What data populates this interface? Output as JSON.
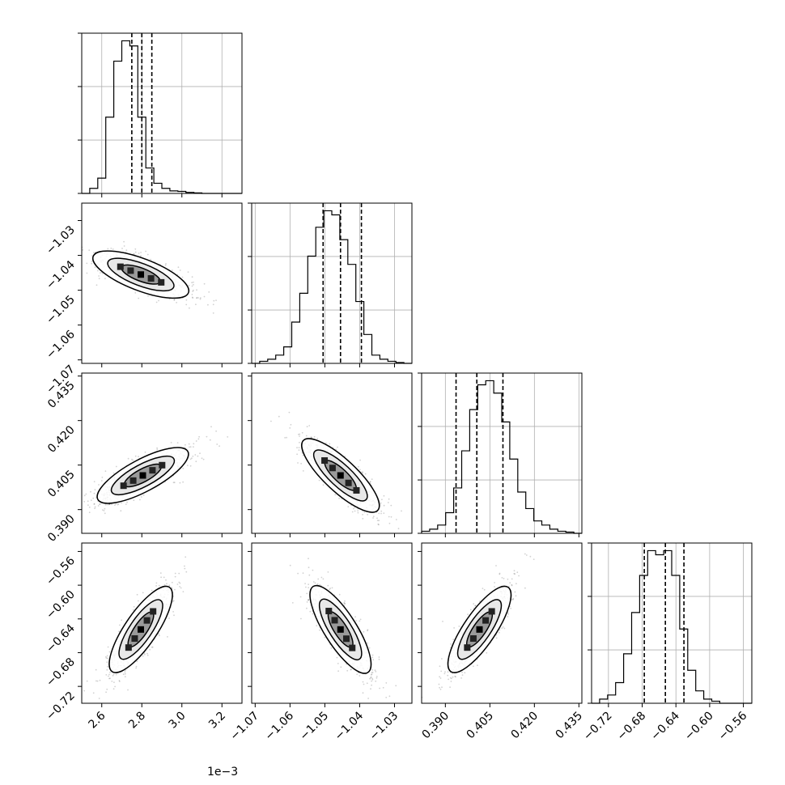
{
  "chart_data": {
    "type": "corner",
    "title": "",
    "grid": true,
    "quantile_lines": "dashed",
    "parameters": [
      {
        "range": [
          2.5,
          3.3
        ],
        "ticks": [
          2.6,
          2.8,
          3.0,
          3.2
        ],
        "tick_labels": [
          "2.6",
          "2.8",
          "3.0",
          "3.2"
        ],
        "offset_label": "1e−3",
        "quantiles": [
          2.75,
          2.8,
          2.85
        ],
        "hist_range": [
          2.5,
          3.3
        ],
        "hist": [
          0,
          1,
          3,
          15,
          26,
          30,
          29,
          15,
          5,
          2,
          1,
          0.5,
          0.4,
          0.2,
          0.1,
          0,
          0,
          0,
          0,
          0
        ]
      },
      {
        "range": [
          -1.071,
          -1.025
        ],
        "ticks": [
          -1.07,
          -1.06,
          -1.05,
          -1.04,
          -1.03
        ],
        "tick_labels": [
          "−1.07",
          "−1.06",
          "−1.05",
          "−1.04",
          "−1.03"
        ],
        "quantiles": [
          -1.0505,
          -1.0455,
          -1.0395
        ],
        "hist_range": [
          -1.071,
          -1.025
        ],
        "hist": [
          0,
          0.5,
          1,
          2,
          4,
          10,
          17,
          26,
          33,
          37,
          36,
          30,
          24,
          15,
          7,
          2,
          1,
          0.5,
          0.2,
          0
        ]
      },
      {
        "range": [
          0.382,
          0.436
        ],
        "ticks": [
          0.39,
          0.405,
          0.42,
          0.435
        ],
        "tick_labels": [
          "0.390",
          "0.405",
          "0.420",
          "0.435"
        ],
        "quantiles": [
          0.3936,
          0.4006,
          0.4094
        ],
        "hist_range": [
          0.382,
          0.436
        ],
        "hist": [
          0.5,
          1,
          2,
          5,
          11,
          20,
          30,
          36,
          37,
          34,
          27,
          18,
          10,
          6,
          3,
          2,
          1,
          0.5,
          0.3,
          0
        ]
      },
      {
        "range": [
          -0.74,
          -0.55
        ],
        "ticks": [
          -0.72,
          -0.68,
          -0.64,
          -0.6,
          -0.56
        ],
        "tick_labels": [
          "−0.72",
          "−0.68",
          "−0.64",
          "−0.60",
          "−0.56"
        ],
        "quantiles": [
          -0.6775,
          -0.6525,
          -0.6305
        ],
        "hist_range": [
          -0.74,
          -0.55
        ],
        "hist": [
          0,
          1,
          2,
          5,
          12,
          22,
          31,
          37,
          36,
          37,
          31,
          18,
          8,
          3,
          1,
          0.5,
          0,
          0,
          0,
          0
        ]
      }
    ],
    "pairs": [
      {
        "x": 0,
        "y": 1,
        "center": [
          2.795,
          -1.0455
        ],
        "slope": -0.022
      },
      {
        "x": 0,
        "y": 2,
        "center": [
          2.805,
          0.4015
        ],
        "slope": 0.036
      },
      {
        "x": 0,
        "y": 3,
        "center": [
          2.795,
          -0.6525
        ],
        "slope": 0.35
      },
      {
        "x": 1,
        "y": 2,
        "center": [
          -1.0455,
          0.4015
        ],
        "slope": -1.1
      },
      {
        "x": 1,
        "y": 3,
        "center": [
          -1.0455,
          -0.6525
        ],
        "slope": -6.5
      },
      {
        "x": 2,
        "y": 3,
        "center": [
          0.4015,
          -0.6525
        ],
        "slope": 5.2
      }
    ]
  }
}
